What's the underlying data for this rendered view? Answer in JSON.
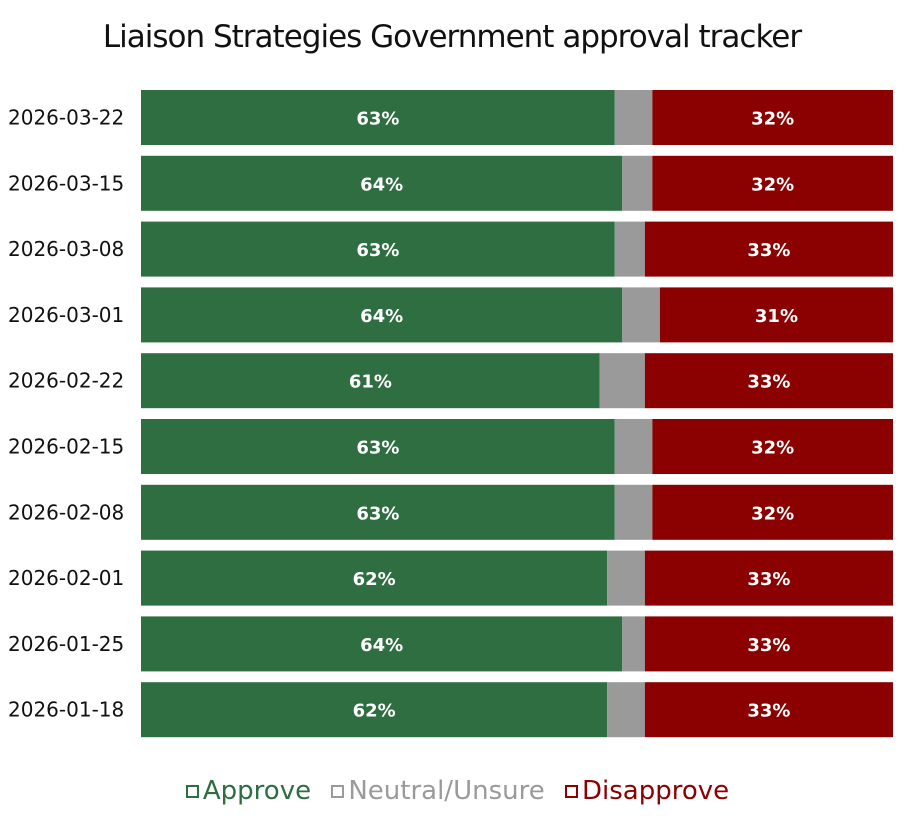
{
  "chart_data": {
    "type": "bar",
    "orientation": "horizontal",
    "stacked": true,
    "title": "Liaison Strategies Government approval tracker",
    "categories": [
      "2026-03-22",
      "2026-03-15",
      "2026-03-08",
      "2026-03-01",
      "2026-02-22",
      "2026-02-15",
      "2026-02-08",
      "2026-02-01",
      "2026-01-25",
      "2026-01-18"
    ],
    "series": [
      {
        "name": "Approve",
        "color": "#2e6e41",
        "values": [
          63,
          64,
          63,
          64,
          61,
          63,
          63,
          62,
          64,
          62
        ],
        "labels": [
          "63%",
          "64%",
          "63%",
          "64%",
          "61%",
          "63%",
          "63%",
          "62%",
          "64%",
          "62%"
        ]
      },
      {
        "name": "Neutral/Unsure",
        "color": "#9a9a9a",
        "values": [
          5,
          4,
          4,
          5,
          6,
          5,
          5,
          5,
          3,
          5
        ]
      },
      {
        "name": "Disapprove",
        "color": "#8b0000",
        "values": [
          32,
          32,
          33,
          31,
          33,
          32,
          32,
          33,
          33,
          33
        ],
        "labels": [
          "32%",
          "32%",
          "33%",
          "31%",
          "33%",
          "32%",
          "32%",
          "33%",
          "33%",
          "33%"
        ]
      }
    ],
    "xlim": [
      0,
      100
    ],
    "grid": false,
    "legend_position": "bottom"
  }
}
